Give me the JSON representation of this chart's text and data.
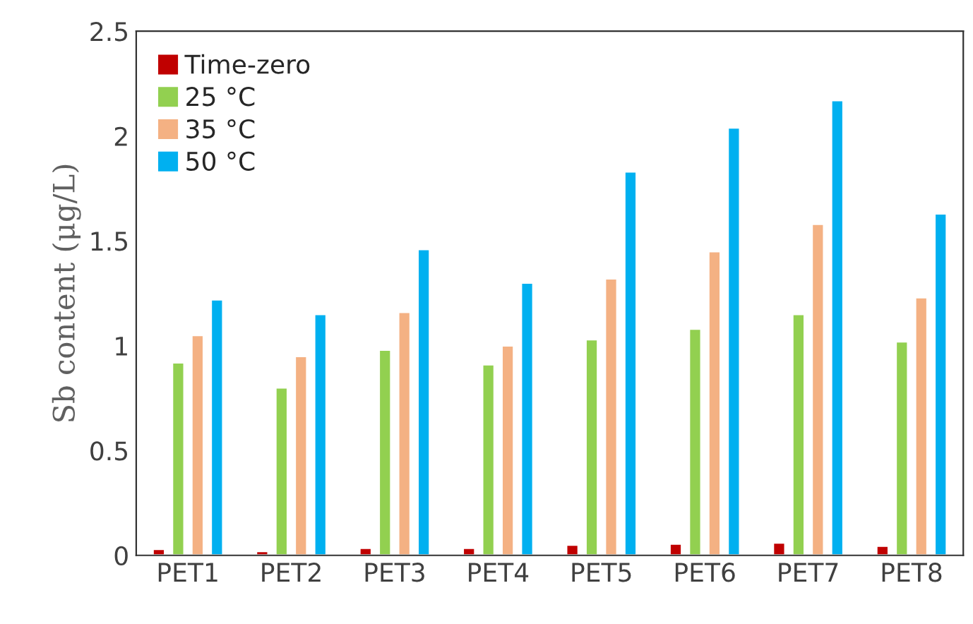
{
  "chart_data": {
    "type": "bar",
    "ylabel": "Sb content (μg/L)",
    "categories": [
      "PET1",
      "PET2",
      "PET3",
      "PET4",
      "PET5",
      "PET6",
      "PET7",
      "PET8"
    ],
    "series": [
      {
        "name": "Time-zero",
        "color": "#c00000",
        "values": [
          0.03,
          0.02,
          0.035,
          0.035,
          0.05,
          0.055,
          0.06,
          0.045
        ]
      },
      {
        "name": "25 °C",
        "color": "#92d050",
        "values": [
          0.92,
          0.8,
          0.98,
          0.91,
          1.03,
          1.08,
          1.15,
          1.02
        ]
      },
      {
        "name": "35 °C",
        "color": "#f4b183",
        "values": [
          1.05,
          0.95,
          1.16,
          1.0,
          1.32,
          1.45,
          1.58,
          1.23
        ]
      },
      {
        "name": "50 °C",
        "color": "#00b0f0",
        "values": [
          1.22,
          1.15,
          1.46,
          1.3,
          1.83,
          2.04,
          2.17,
          1.63
        ]
      }
    ],
    "ylim": [
      0,
      2.5
    ],
    "yticks": [
      0,
      0.5,
      1,
      1.5,
      2,
      2.5
    ],
    "grid": false,
    "legend": "top left"
  }
}
